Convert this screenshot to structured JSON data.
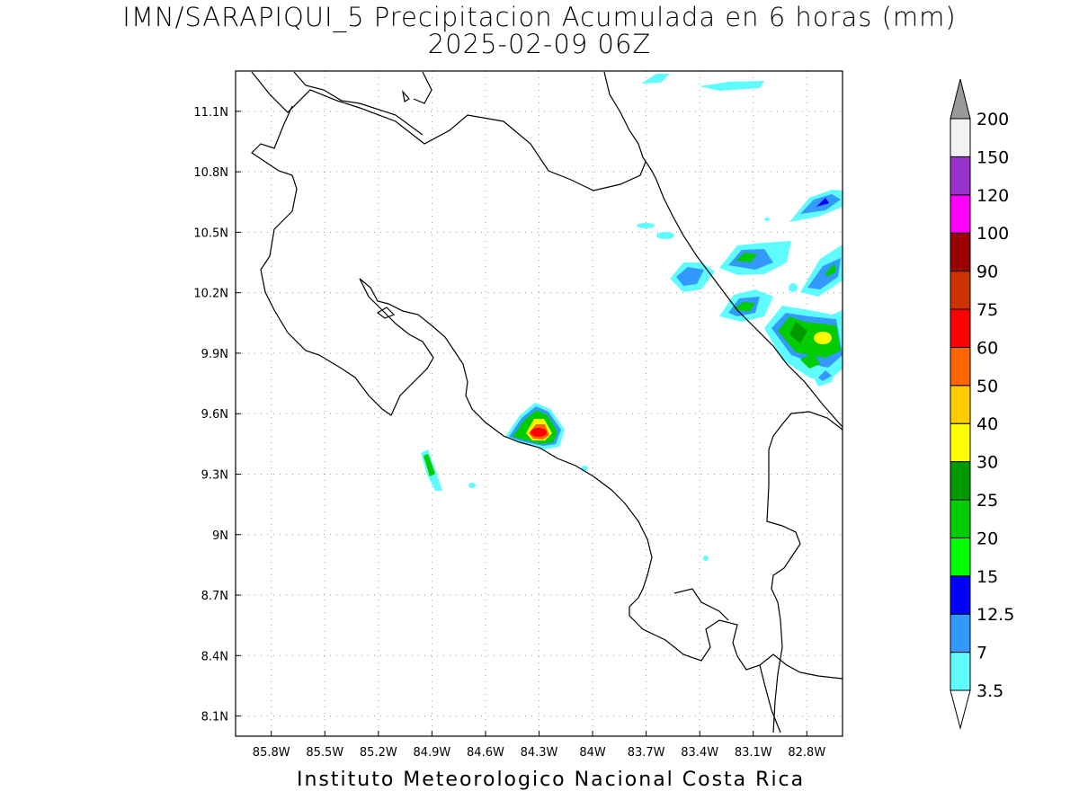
{
  "title": "IMN/SARAPIQUI_5 Precipitacion Acumulada en 6 horas (mm)",
  "subtitle": "2025-02-09 06Z",
  "footer": "Instituto Meteorologico Nacional Costa Rica",
  "map": {
    "lon_range": [
      -86.0,
      -82.6
    ],
    "lat_range": [
      8.0,
      11.3
    ],
    "lat_ticks": [
      "11.1N",
      "10.8N",
      "10.5N",
      "10.2N",
      "9.9N",
      "9.6N",
      "9.3N",
      "9N",
      "8.7N",
      "8.4N",
      "8.1N"
    ],
    "lon_ticks": [
      "85.8W",
      "85.5W",
      "85.2W",
      "84.9W",
      "84.6W",
      "84.3W",
      "84W",
      "83.7W",
      "83.4W",
      "83.1W",
      "82.8W"
    ],
    "grid": true
  },
  "colorbar": {
    "levels": [
      "3.5",
      "7",
      "12.5",
      "15",
      "20",
      "25",
      "30",
      "40",
      "50",
      "60",
      "75",
      "90",
      "100",
      "120",
      "150",
      "200"
    ],
    "colors": [
      "#5ffcff",
      "#3399ff",
      "#0000ff",
      "#00ff00",
      "#00cc00",
      "#009900",
      "#ffff00",
      "#ffcc00",
      "#ff6600",
      "#ff0000",
      "#cc3300",
      "#990000",
      "#ff00ff",
      "#9933cc",
      "#f2f2f2"
    ],
    "under_color": "#ffffff",
    "over_color": "#999999"
  }
}
